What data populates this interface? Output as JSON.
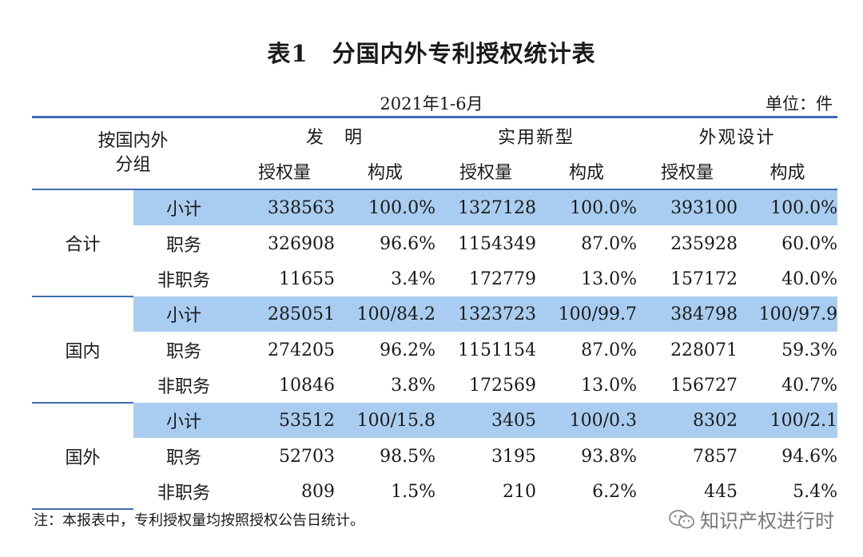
{
  "title": "表1　分国内外专利授权统计表",
  "period": "2021年1-6月",
  "unit": "单位：件",
  "header": {
    "corner_line1": "按国内外",
    "corner_line2": "分组",
    "groups": [
      "发　明",
      "实用新型",
      "外观设计"
    ],
    "subcols": [
      "授权量",
      "构成",
      "授权量",
      "构成",
      "授权量",
      "构成"
    ]
  },
  "sections": [
    {
      "name": "合计",
      "rows": [
        {
          "label": "小计",
          "values": [
            "338563",
            "100.0%",
            "1327128",
            "100.0%",
            "393100",
            "100.0%"
          ]
        },
        {
          "label": "职务",
          "values": [
            "326908",
            "96.6%",
            "1154349",
            "87.0%",
            "235928",
            "60.0%"
          ]
        },
        {
          "label": "非职务",
          "values": [
            "11655",
            "3.4%",
            "172779",
            "13.0%",
            "157172",
            "40.0%"
          ]
        }
      ]
    },
    {
      "name": "国内",
      "rows": [
        {
          "label": "小计",
          "values": [
            "285051",
            "100/84.2",
            "1323723",
            "100/99.7",
            "384798",
            "100/97.9"
          ]
        },
        {
          "label": "职务",
          "values": [
            "274205",
            "96.2%",
            "1151154",
            "87.0%",
            "228071",
            "59.3%"
          ]
        },
        {
          "label": "非职务",
          "values": [
            "10846",
            "3.8%",
            "172569",
            "13.0%",
            "156727",
            "40.7%"
          ]
        }
      ]
    },
    {
      "name": "国外",
      "rows": [
        {
          "label": "小计",
          "values": [
            "53512",
            "100/15.8",
            "3405",
            "100/0.3",
            "8302",
            "100/2.1"
          ]
        },
        {
          "label": "职务",
          "values": [
            "52703",
            "98.5%",
            "3195",
            "93.8%",
            "7857",
            "94.6%"
          ]
        },
        {
          "label": "非职务",
          "values": [
            "809",
            "1.5%",
            "210",
            "6.2%",
            "445",
            "5.4%"
          ]
        }
      ]
    }
  ],
  "note": "注：本报表中，专利授权量均按照授权公告日统计。",
  "watermark": {
    "text": "知识产权进行时",
    "icon": "wechat-icon"
  },
  "colors": {
    "border": "#3f6db3",
    "subtotal_bg": "#a9cdf0"
  }
}
